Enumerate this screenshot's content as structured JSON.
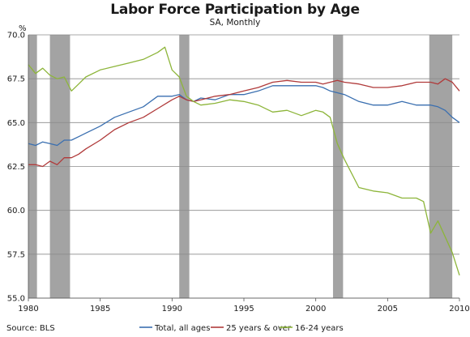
{
  "chart_data": {
    "type": "line",
    "title": "Labor Force Participation by Age",
    "subtitle": "SA, Monthly",
    "ylabel": "%",
    "source": "Source: BLS",
    "xlim": [
      1980,
      2010
    ],
    "ylim": [
      55.0,
      70.0
    ],
    "x_ticks": [
      1980,
      1985,
      1990,
      1995,
      2000,
      2005,
      2010
    ],
    "y_ticks": [
      "55.0",
      "57.5",
      "60.0",
      "62.5",
      "65.0",
      "67.5",
      "70.0"
    ],
    "grid": "horizontal",
    "legend_position": "bottom",
    "recessions": [
      [
        1980.0,
        1980.6
      ],
      [
        1981.5,
        1982.9
      ],
      [
        1990.5,
        1991.2
      ],
      [
        2001.2,
        2001.9
      ],
      [
        2007.9,
        2009.5
      ]
    ],
    "series": [
      {
        "name": "Total, all ages",
        "color": "#3a6fb0",
        "x": [
          1980,
          1980.5,
          1981,
          1981.5,
          1982,
          1982.5,
          1983,
          1983.5,
          1984,
          1985,
          1986,
          1987,
          1988,
          1989,
          1990,
          1990.5,
          1991,
          1991.5,
          1992,
          1993,
          1994,
          1995,
          1996,
          1997,
          1998,
          1999,
          2000,
          2000.5,
          2001,
          2001.5,
          2002,
          2003,
          2004,
          2005,
          2006,
          2007,
          2008,
          2008.5,
          2009,
          2009.5,
          2010
        ],
        "y": [
          63.8,
          63.7,
          63.9,
          63.8,
          63.7,
          64.0,
          64.0,
          64.2,
          64.4,
          64.8,
          65.3,
          65.6,
          65.9,
          66.5,
          66.5,
          66.6,
          66.3,
          66.2,
          66.4,
          66.3,
          66.6,
          66.6,
          66.8,
          67.1,
          67.1,
          67.1,
          67.1,
          67.0,
          66.8,
          66.7,
          66.6,
          66.2,
          66.0,
          66.0,
          66.2,
          66.0,
          66.0,
          65.9,
          65.7,
          65.3,
          65.0
        ]
      },
      {
        "name": "25 years & over",
        "color": "#b03a3a",
        "x": [
          1980,
          1980.5,
          1981,
          1981.5,
          1982,
          1982.5,
          1983,
          1983.5,
          1984,
          1985,
          1986,
          1987,
          1988,
          1989,
          1990,
          1990.5,
          1991,
          1991.5,
          1992,
          1993,
          1994,
          1995,
          1996,
          1997,
          1998,
          1999,
          2000,
          2000.5,
          2001,
          2001.5,
          2002,
          2003,
          2004,
          2005,
          2006,
          2007,
          2008,
          2008.5,
          2009,
          2009.5,
          2010
        ],
        "y": [
          62.6,
          62.6,
          62.5,
          62.8,
          62.6,
          63.0,
          63.0,
          63.2,
          63.5,
          64.0,
          64.6,
          65.0,
          65.3,
          65.8,
          66.3,
          66.5,
          66.3,
          66.2,
          66.3,
          66.5,
          66.6,
          66.8,
          67.0,
          67.3,
          67.4,
          67.3,
          67.3,
          67.2,
          67.3,
          67.4,
          67.3,
          67.2,
          67.0,
          67.0,
          67.1,
          67.3,
          67.3,
          67.2,
          67.5,
          67.3,
          66.8
        ]
      },
      {
        "name": "16-24 years",
        "color": "#8db53a",
        "x": [
          1980,
          1980.5,
          1981,
          1981.5,
          1982,
          1982.5,
          1983,
          1983.5,
          1984,
          1985,
          1986,
          1987,
          1988,
          1989,
          1989.5,
          1990,
          1990.5,
          1991,
          1991.5,
          1992,
          1993,
          1994,
          1995,
          1996,
          1997,
          1998,
          1999,
          2000,
          2000.5,
          2001,
          2001.5,
          2002,
          2003,
          2004,
          2005,
          2006,
          2007,
          2007.5,
          2008,
          2008.5,
          2009,
          2009.5,
          2010
        ],
        "y": [
          68.3,
          67.8,
          68.1,
          67.7,
          67.5,
          67.6,
          66.8,
          67.2,
          67.6,
          68.0,
          68.2,
          68.4,
          68.6,
          69.0,
          69.3,
          68.0,
          67.6,
          66.5,
          66.2,
          66.0,
          66.1,
          66.3,
          66.2,
          66.0,
          65.6,
          65.7,
          65.4,
          65.7,
          65.6,
          65.3,
          63.8,
          62.9,
          61.3,
          61.1,
          61.0,
          60.7,
          60.7,
          60.5,
          58.7,
          59.4,
          58.5,
          57.6,
          56.3
        ]
      }
    ]
  }
}
